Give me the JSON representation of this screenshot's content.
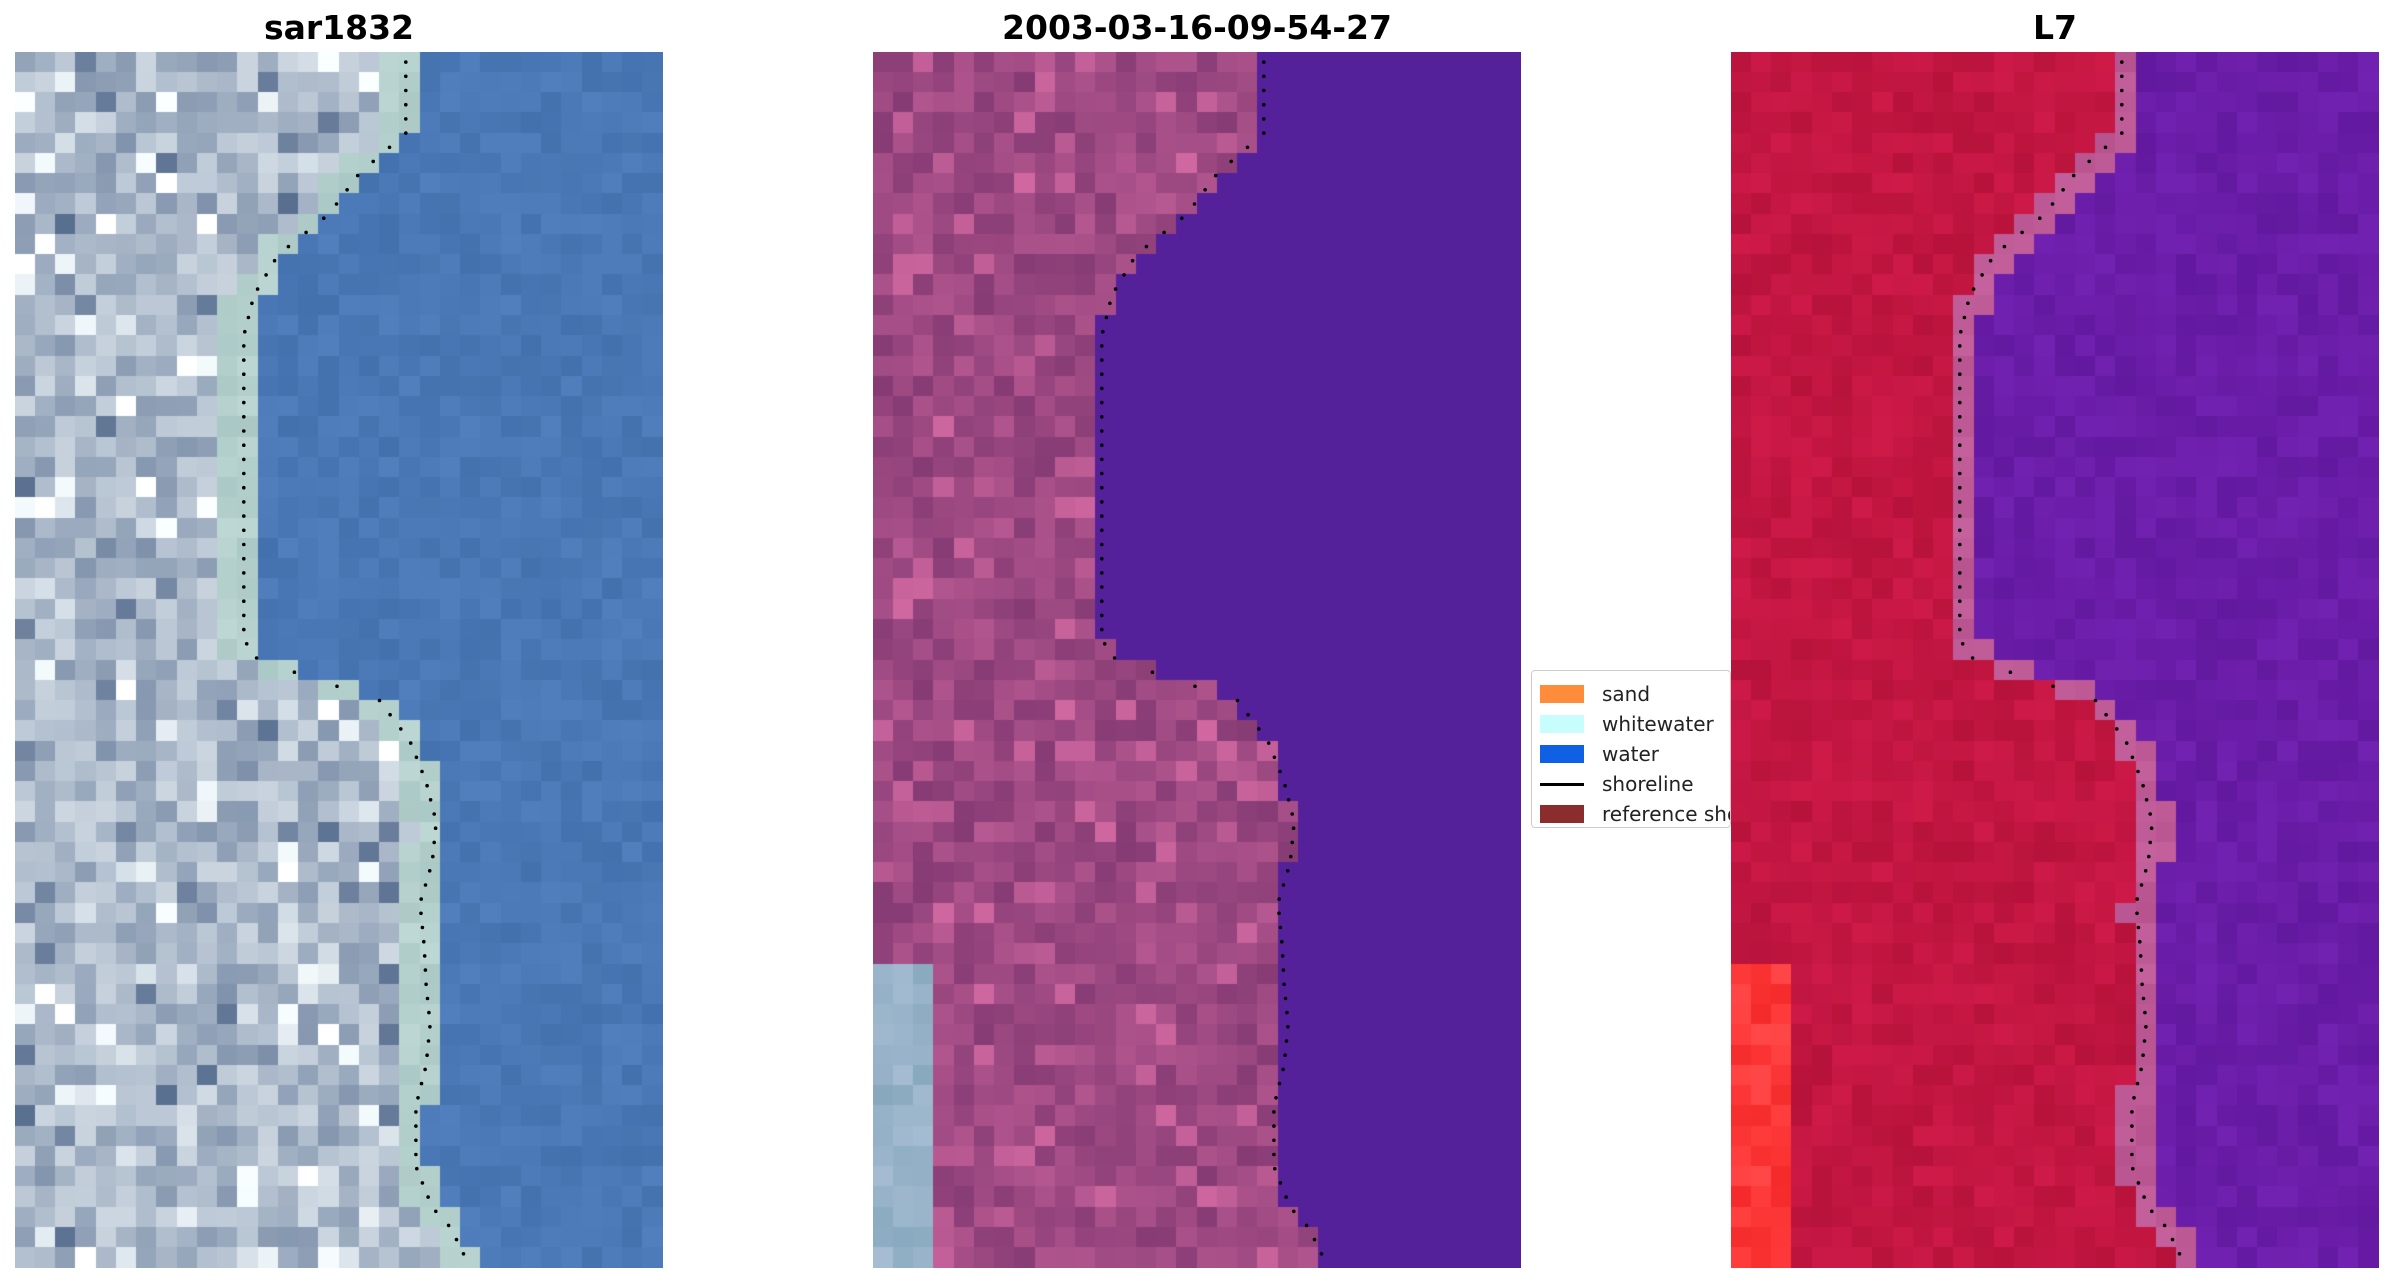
{
  "titles": {
    "panel_1": "sar1832",
    "panel_2": "2003-03-16-09-54-27",
    "panel_3": "L7"
  },
  "legend": {
    "items": [
      {
        "label": "sand",
        "color": "#ff8c3a",
        "kind": "patch"
      },
      {
        "label": "whitewater",
        "color": "#c8fdfd",
        "kind": "patch"
      },
      {
        "label": "water",
        "color": "#1060e6",
        "kind": "patch"
      },
      {
        "label": "shoreline",
        "color": "#000000",
        "kind": "line"
      },
      {
        "label": "reference shoreline",
        "color": "#8b2d2d",
        "kind": "patch"
      }
    ]
  },
  "colors": {
    "water_rgb": "#4a78b6",
    "land_rgb": "#a9b7c8",
    "classified_water": "#55219a",
    "classified_land": "#9a4780",
    "ndvi_land": "#c21641",
    "ndvi_water": "#6a1da8",
    "ndvi_bright": "#ff3a3a",
    "shoreline_dots": "#000000"
  }
}
